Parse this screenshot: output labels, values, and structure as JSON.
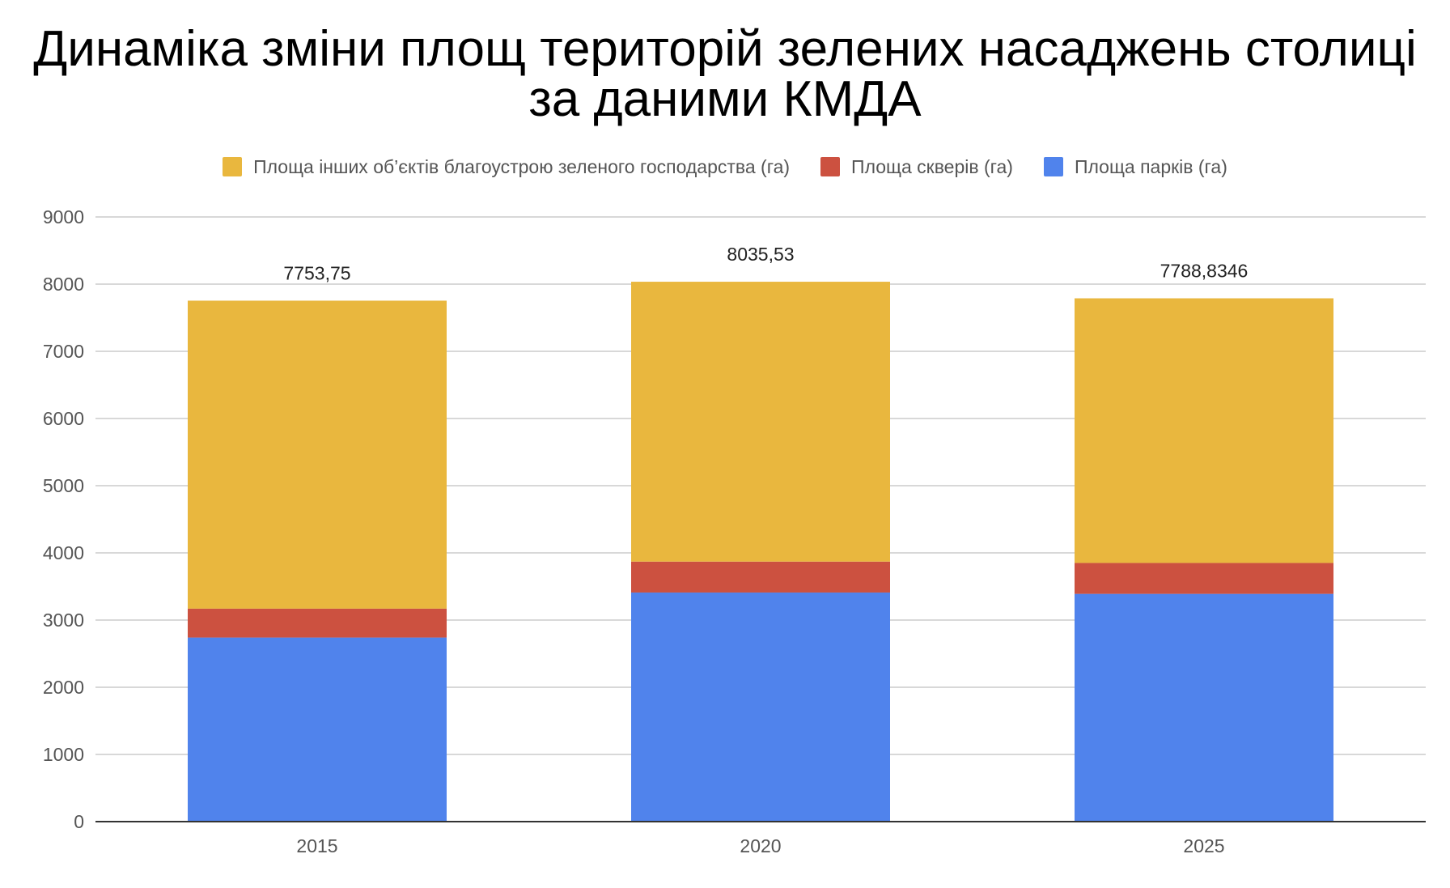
{
  "chart_data": {
    "type": "bar",
    "stacked": true,
    "title_line1": "Динаміка зміни площ територій зелених насаджень столиці",
    "title_line2": "за даними КМДА",
    "xlabel": "",
    "ylabel": "",
    "categories": [
      "2015",
      "2020",
      "2025"
    ],
    "ylim": [
      0,
      9000
    ],
    "yticks": [
      0,
      1000,
      2000,
      3000,
      4000,
      5000,
      6000,
      7000,
      8000,
      9000
    ],
    "grid": true,
    "legend_position": "top",
    "series": [
      {
        "name": "Площа парків (га)",
        "color": "#5083EC",
        "values": [
          2740,
          3410,
          3390
        ]
      },
      {
        "name": "Площа скверів (га)",
        "color": "#CC5140",
        "values": [
          430,
          460,
          460
        ]
      },
      {
        "name": "Площа інших об’єктів благоустрою зеленого господарства (га)",
        "color": "#E9B73E",
        "values": [
          4583.75,
          4165.53,
          3938.8346
        ]
      }
    ],
    "totals": [
      "7753,75",
      "8035,53",
      "7788,8346"
    ],
    "legend_order": [
      2,
      1,
      0
    ]
  }
}
